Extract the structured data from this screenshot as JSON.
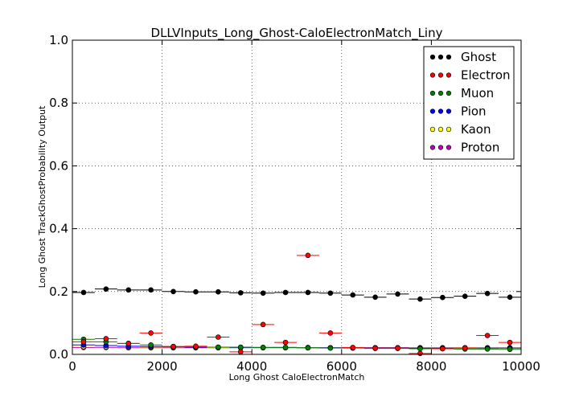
{
  "chart_data": {
    "type": "scatter",
    "title": "DLLVInputs_Long_Ghost-CaloElectronMatch_Liny",
    "xlabel": "Long Ghost CaloElectronMatch",
    "ylabel": "Long Ghost TrackGhostProbability Output",
    "xlim": [
      0,
      10000
    ],
    "ylim": [
      0.0,
      1.0
    ],
    "xticks": [
      0,
      2000,
      4000,
      6000,
      8000,
      10000
    ],
    "xtick_labels": [
      "0",
      "2000",
      "4000",
      "6000",
      "8000",
      "10000"
    ],
    "yticks": [
      0.0,
      0.2,
      0.4,
      0.6,
      0.8,
      1.0
    ],
    "ytick_labels": [
      "0.0",
      "0.2",
      "0.4",
      "0.6",
      "0.8",
      "1.0"
    ],
    "grid": true,
    "legend_position": "top-right",
    "bin_width": 500,
    "x": [
      250,
      750,
      1250,
      1750,
      2250,
      2750,
      3250,
      3750,
      4250,
      4750,
      5250,
      5750,
      6250,
      6750,
      7250,
      7750,
      8250,
      8750,
      9250,
      9750
    ],
    "series": [
      {
        "name": "Ghost",
        "color": "#000000",
        "values": [
          0.197,
          0.208,
          0.205,
          0.205,
          0.2,
          0.199,
          0.199,
          0.196,
          0.195,
          0.197,
          0.197,
          0.195,
          0.189,
          0.182,
          0.192,
          0.176,
          0.181,
          0.185,
          0.194,
          0.182
        ]
      },
      {
        "name": "Electron",
        "color": "#ff0000",
        "values": [
          0.04,
          0.05,
          0.035,
          0.068,
          0.025,
          0.026,
          0.055,
          0.008,
          0.095,
          0.038,
          0.315,
          0.068,
          0.022,
          0.02,
          0.02,
          0.003,
          0.018,
          0.02,
          0.06,
          0.038
        ]
      },
      {
        "name": "Muon",
        "color": "#008000",
        "values": [
          0.048,
          0.04,
          0.035,
          0.03,
          0.025,
          0.024,
          0.023,
          0.023,
          0.022,
          0.022,
          0.021,
          0.02,
          0.02,
          0.019,
          0.019,
          0.018,
          0.018,
          0.017,
          0.017,
          0.016
        ]
      },
      {
        "name": "Pion",
        "color": "#0000ff",
        "values": [
          0.03,
          0.028,
          0.026,
          0.025,
          0.024,
          0.023,
          0.023,
          0.022,
          0.022,
          0.022,
          0.021,
          0.021,
          0.021,
          0.021,
          0.021,
          0.02,
          0.02,
          0.02,
          0.02,
          0.02
        ]
      },
      {
        "name": "Kaon",
        "color": "#ffff00",
        "values": [
          0.025,
          0.024,
          0.024,
          0.023,
          0.023,
          0.023,
          0.022,
          0.022,
          0.022,
          0.022,
          0.022,
          0.021,
          0.021,
          0.021,
          0.021,
          0.021,
          0.021,
          0.021,
          0.021,
          0.021
        ]
      },
      {
        "name": "Proton",
        "color": "#bf00bf",
        "values": [
          0.022,
          0.022,
          0.021,
          0.021,
          0.021,
          0.021,
          0.021,
          0.021,
          0.021,
          0.021,
          0.021,
          0.021,
          0.021,
          0.021,
          0.021,
          0.021,
          0.021,
          0.021,
          0.021,
          0.021
        ]
      }
    ]
  }
}
